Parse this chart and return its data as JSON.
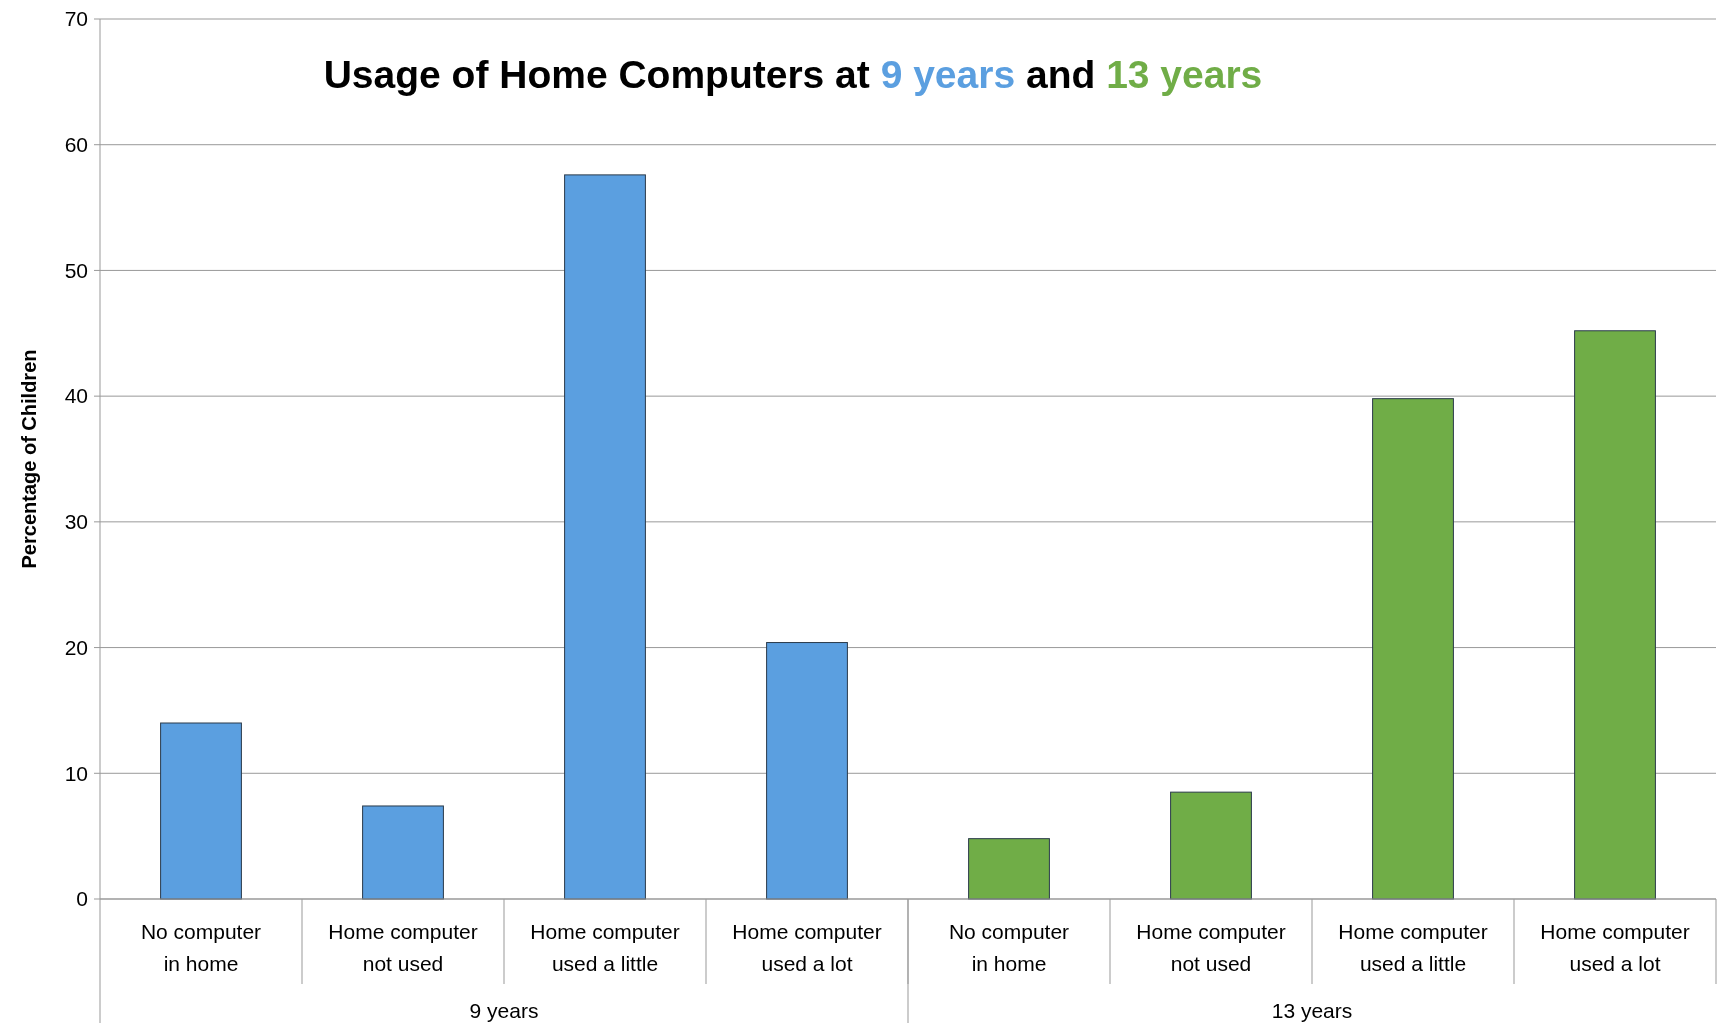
{
  "chart_data": {
    "type": "bar",
    "title": "Usage of Home Computers at 9 years and 13 years",
    "ylabel": "Percentage of Children",
    "categories": [
      "No computer in home",
      "Home computer not used",
      "Home computer used a little",
      "Home computer used a lot",
      "No computer in home",
      "Home computer not used",
      "Home computer used a little",
      "Home computer used a lot"
    ],
    "values": [
      14,
      7.4,
      57.6,
      20.4,
      4.8,
      8.5,
      39.8,
      45.2
    ],
    "colors": [
      "#5b9fe0",
      "#5b9fe0",
      "#5b9fe0",
      "#5b9fe0",
      "#70ad47",
      "#70ad47",
      "#70ad47",
      "#70ad47"
    ],
    "annotations": [
      "9 years",
      "13 years"
    ],
    "ylim": [
      0,
      70
    ],
    "yticks": [
      0,
      10,
      20,
      30,
      40,
      50,
      60,
      70
    ],
    "grid": "y"
  }
}
